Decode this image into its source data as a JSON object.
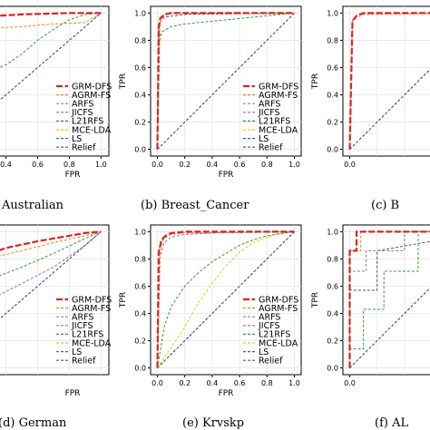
{
  "colors": {
    "GRM-DFS": "#d62728",
    "AGRM-FS": "#ff7f0e",
    "ARFS": "#8c8c8c",
    "JICFS": "#9467bd",
    "L21RFS": "#2ca02c",
    "MCE-LDA": "#d4d414",
    "LS": "#1f77b4",
    "Relief": "#555555",
    "diagonal": "#1f3c88"
  },
  "chart_data": [
    {
      "type": "line",
      "caption": "Australian",
      "xlabel": "FPR",
      "ylabel": "",
      "xlim": [
        0,
        1
      ],
      "ylim": [
        0,
        1
      ],
      "x_ticks": [
        "0.4",
        "0.6",
        "0.8",
        "1.0"
      ],
      "y_ticks": [],
      "legend": [
        "GRM-DFS",
        "AGRM-FS",
        "ARFS",
        "JICFS",
        "L21RFS",
        "MCE-LDA",
        "LS",
        "Relief"
      ],
      "legend_position": "bottom-right",
      "series": [
        {
          "name": "GRM-DFS",
          "x": [
            0,
            0.05,
            0.2,
            0.5,
            0.8,
            1
          ],
          "y": [
            0.9,
            0.95,
            0.97,
            0.99,
            1,
            1
          ]
        },
        {
          "name": "AGRM-FS",
          "x": [
            0,
            0.2,
            0.5,
            0.7,
            0.9,
            1
          ],
          "y": [
            0.85,
            0.88,
            0.9,
            0.92,
            0.93,
            1
          ]
        },
        {
          "name": "L21RFS",
          "x": [
            0,
            0.1,
            0.25,
            0.4,
            0.5,
            0.6,
            0.7,
            0.8,
            0.9,
            1
          ],
          "y": [
            0.35,
            0.45,
            0.55,
            0.62,
            0.7,
            0.8,
            0.88,
            0.95,
            0.99,
            1
          ]
        },
        {
          "name": "LS",
          "x": [
            0,
            1
          ],
          "y": [
            0,
            1
          ]
        }
      ]
    },
    {
      "type": "line",
      "caption": "(b) Breast_Cancer",
      "xlabel": "FPR",
      "ylabel": "TPR",
      "xlim": [
        0,
        1
      ],
      "ylim": [
        0,
        1
      ],
      "x_ticks": [
        "0.0",
        "0.2",
        "0.4",
        "0.6",
        "0.8",
        "1.0"
      ],
      "y_ticks": [
        "0.0",
        "0.2",
        "0.4",
        "0.6",
        "0.8",
        "1.0"
      ],
      "legend": [
        "GRM-DFS",
        "AGRM-FS",
        "ARFS",
        "JICFS",
        "L21RFS",
        "MCE-LDA",
        "LS",
        "Relief"
      ],
      "legend_position": "bottom-right",
      "series": [
        {
          "name": "GRM-DFS",
          "x": [
            0,
            0.01,
            0.02,
            0.05,
            0.1,
            0.3,
            1
          ],
          "y": [
            0,
            0.9,
            0.96,
            0.99,
            1,
            1,
            1
          ]
        },
        {
          "name": "AGRM-FS",
          "x": [
            0,
            0.02,
            0.05,
            0.1,
            1
          ],
          "y": [
            0,
            0.93,
            0.98,
            1,
            1
          ]
        },
        {
          "name": "L21RFS",
          "x": [
            0,
            0.01,
            0.03,
            0.1,
            0.2,
            0.3,
            1
          ],
          "y": [
            0,
            0.75,
            0.86,
            0.9,
            0.92,
            0.93,
            1
          ]
        },
        {
          "name": "Relief",
          "x": [
            0,
            0.01,
            0.05,
            0.2,
            1
          ],
          "y": [
            0,
            0.92,
            0.97,
            0.99,
            1
          ]
        },
        {
          "name": "LS",
          "x": [
            0,
            1
          ],
          "y": [
            0,
            1
          ]
        }
      ]
    },
    {
      "type": "line",
      "caption": "(c) B",
      "xlabel": "",
      "ylabel": "TPR",
      "xlim": [
        0,
        1
      ],
      "ylim": [
        0,
        1
      ],
      "x_ticks": [
        "0.0"
      ],
      "y_ticks": [
        "0.0",
        "0.2",
        "0.4",
        "0.6",
        "0.8",
        "1.0"
      ],
      "series": [
        {
          "name": "GRM-DFS",
          "x": [
            0,
            0.02,
            0.05,
            0.1,
            1
          ],
          "y": [
            0,
            0.94,
            0.98,
            1,
            1
          ]
        },
        {
          "name": "AGRM-FS",
          "x": [
            0,
            0.02,
            0.1,
            1
          ],
          "y": [
            0,
            0.95,
            0.99,
            1
          ]
        },
        {
          "name": "LS",
          "x": [
            0,
            1
          ],
          "y": [
            0,
            1
          ]
        }
      ]
    },
    {
      "type": "line",
      "caption": "(d) German",
      "xlabel": "FPR",
      "ylabel": "",
      "xlim": [
        0,
        1
      ],
      "ylim": [
        0,
        1
      ],
      "x_ticks": [],
      "y_ticks": [],
      "legend": [
        "GRM-DFS",
        "AGRM-FS",
        "ARFS",
        "JICFS",
        "L21RFS",
        "MCE-LDA",
        "LS",
        "Relief"
      ],
      "legend_position": "bottom-right",
      "series": [
        {
          "name": "GRM-DFS",
          "x": [
            0,
            0.2,
            0.4,
            0.6,
            0.8,
            0.9,
            1
          ],
          "y": [
            0.7,
            0.8,
            0.88,
            0.93,
            0.97,
            0.99,
            1
          ]
        },
        {
          "name": "AGRM-FS",
          "x": [
            0,
            0.2,
            0.5,
            0.7,
            0.9,
            1
          ],
          "y": [
            0.68,
            0.78,
            0.86,
            0.92,
            0.97,
            1
          ]
        },
        {
          "name": "JICFS",
          "x": [
            0,
            0.3,
            0.5,
            0.7,
            0.9,
            1
          ],
          "y": [
            0.4,
            0.5,
            0.62,
            0.74,
            0.9,
            1
          ]
        },
        {
          "name": "L21RFS",
          "x": [
            0,
            0.3,
            0.5,
            0.7,
            0.9,
            1
          ],
          "y": [
            0.55,
            0.65,
            0.74,
            0.84,
            0.95,
            1
          ]
        },
        {
          "name": "LS",
          "x": [
            0,
            1
          ],
          "y": [
            0,
            1
          ]
        }
      ]
    },
    {
      "type": "line",
      "caption": "(e) Krvskp",
      "xlabel": "FPR",
      "ylabel": "TPR",
      "xlim": [
        0,
        1
      ],
      "ylim": [
        0,
        1
      ],
      "x_ticks": [
        "0.0",
        "0.2",
        "0.4",
        "0.6",
        "0.8",
        "1.0"
      ],
      "y_ticks": [
        "0.0",
        "0.2",
        "0.4",
        "0.6",
        "0.8",
        "1.0"
      ],
      "legend": [
        "GRM-DFS",
        "AGRM-FS",
        "ARFS",
        "JICFS",
        "L21RFS",
        "MCE-LDA",
        "LS",
        "Relief"
      ],
      "legend_position": "bottom-right",
      "series": [
        {
          "name": "GRM-DFS",
          "x": [
            0,
            0.01,
            0.03,
            0.06,
            0.1,
            0.2,
            0.4,
            1
          ],
          "y": [
            0,
            0.85,
            0.94,
            0.97,
            0.99,
            1,
            1,
            1
          ]
        },
        {
          "name": "AGRM-FS",
          "x": [
            0,
            0.02,
            0.05,
            0.1,
            0.2,
            1
          ],
          "y": [
            0,
            0.88,
            0.95,
            0.98,
            0.99,
            1
          ]
        },
        {
          "name": "JICFS",
          "x": [
            0,
            0.02,
            0.05,
            0.1,
            0.2,
            0.4,
            1
          ],
          "y": [
            0,
            0.82,
            0.92,
            0.96,
            0.98,
            0.99,
            1
          ]
        },
        {
          "name": "L21RFS",
          "x": [
            0,
            0.05,
            0.1,
            0.2,
            0.3,
            0.4,
            0.5,
            0.6,
            0.7,
            0.8,
            1
          ],
          "y": [
            0,
            0.3,
            0.45,
            0.6,
            0.7,
            0.78,
            0.84,
            0.9,
            0.94,
            0.97,
            1
          ]
        },
        {
          "name": "MCE-LDA",
          "x": [
            0,
            0.1,
            0.2,
            0.3,
            0.4,
            0.5,
            0.6,
            0.7,
            0.8,
            0.9,
            1
          ],
          "y": [
            0,
            0.15,
            0.3,
            0.48,
            0.62,
            0.75,
            0.85,
            0.92,
            0.96,
            0.99,
            1
          ]
        },
        {
          "name": "Relief",
          "x": [
            0,
            1
          ],
          "y": [
            0,
            1
          ]
        },
        {
          "name": "LS",
          "x": [
            0,
            1
          ],
          "y": [
            0,
            1
          ]
        }
      ]
    },
    {
      "type": "line",
      "caption": "(f) AL",
      "xlabel": "",
      "ylabel": "TPR",
      "xlim": [
        0,
        1
      ],
      "ylim": [
        0,
        1
      ],
      "x_ticks": [
        "0.0"
      ],
      "y_ticks": [
        "0.0",
        "0.2",
        "0.4",
        "0.6",
        "0.8",
        "1.0"
      ],
      "series": [
        {
          "name": "GRM-DFS",
          "x": [
            0,
            0,
            0.05,
            0.05,
            1
          ],
          "y": [
            0,
            0.86,
            0.86,
            1,
            1
          ]
        },
        {
          "name": "AGRM-FS",
          "x": [
            0,
            0,
            0.08,
            0.08,
            1
          ],
          "y": [
            0,
            0.86,
            0.86,
            1,
            1
          ]
        },
        {
          "name": "JICFS",
          "x": [
            0,
            0,
            0.12,
            0.12,
            0.4,
            0.4,
            1
          ],
          "y": [
            0,
            0.71,
            0.71,
            0.86,
            0.86,
            1,
            1
          ]
        },
        {
          "name": "L21RFS",
          "x": [
            0,
            0,
            0.1,
            0.1,
            0.25,
            0.25,
            0.5,
            0.5,
            1
          ],
          "y": [
            0,
            0.14,
            0.14,
            0.43,
            0.43,
            0.71,
            0.71,
            1,
            1
          ]
        },
        {
          "name": "Relief",
          "x": [
            0,
            0,
            0.2,
            0.2,
            1
          ],
          "y": [
            0,
            0.57,
            0.57,
            0.86,
            1
          ]
        },
        {
          "name": "LS",
          "x": [
            0,
            1
          ],
          "y": [
            0,
            1
          ]
        }
      ]
    }
  ]
}
